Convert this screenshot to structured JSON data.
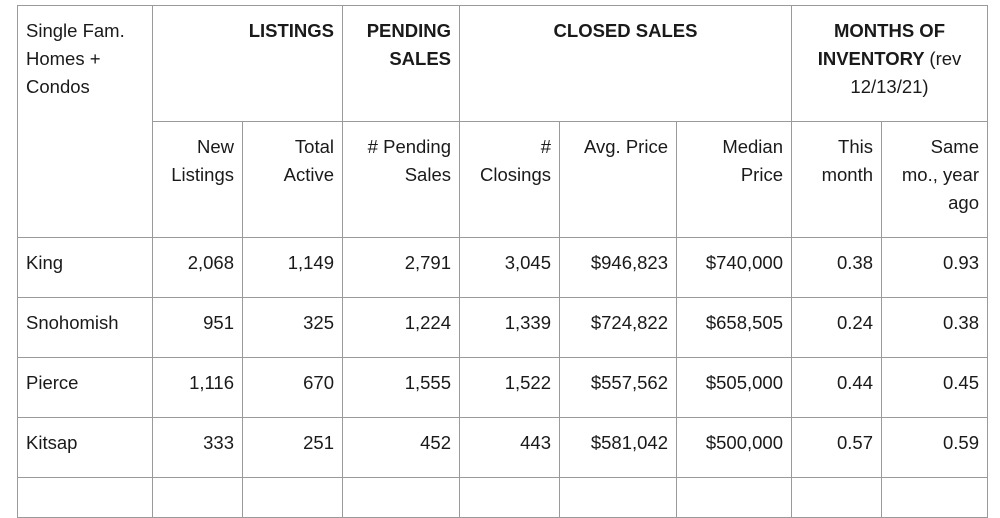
{
  "header": {
    "corner_label": "Single Fam. Homes + Condos",
    "listings": "LISTINGS",
    "pending_sales": "PENDING SALES",
    "closed_sales": "CLOSED SALES",
    "months_inventory": "MONTHS OF INVENTORY",
    "months_inventory_note": "(rev 12/13/21)"
  },
  "subheader": {
    "new_listings": "New Listings",
    "total_active": "Total Active",
    "pending_sales": "# Pending Sales",
    "closings": "# Closings",
    "avg_price": "Avg. Price",
    "median_price": "Median Price",
    "this_month": "This month",
    "same_mo_year_ago": "Same mo., year ago"
  },
  "rows": [
    {
      "county": "King",
      "new_listings": "2,068",
      "total_active": "1,149",
      "pending": "2,791",
      "closings": "3,045",
      "avg_price": "$946,823",
      "median_price": "$740,000",
      "this_month": "0.38",
      "year_ago": "0.93"
    },
    {
      "county": "Snohomish",
      "new_listings": "951",
      "total_active": "325",
      "pending": "1,224",
      "closings": "1,339",
      "avg_price": "$724,822",
      "median_price": "$658,505",
      "this_month": "0.24",
      "year_ago": "0.38"
    },
    {
      "county": "Pierce",
      "new_listings": "1,116",
      "total_active": "670",
      "pending": "1,555",
      "closings": "1,522",
      "avg_price": "$557,562",
      "median_price": "$505,000",
      "this_month": "0.44",
      "year_ago": "0.45"
    },
    {
      "county": "Kitsap",
      "new_listings": "333",
      "total_active": "251",
      "pending": "452",
      "closings": "443",
      "avg_price": "$581,042",
      "median_price": "$500,000",
      "this_month": "0.57",
      "year_ago": "0.59"
    }
  ]
}
